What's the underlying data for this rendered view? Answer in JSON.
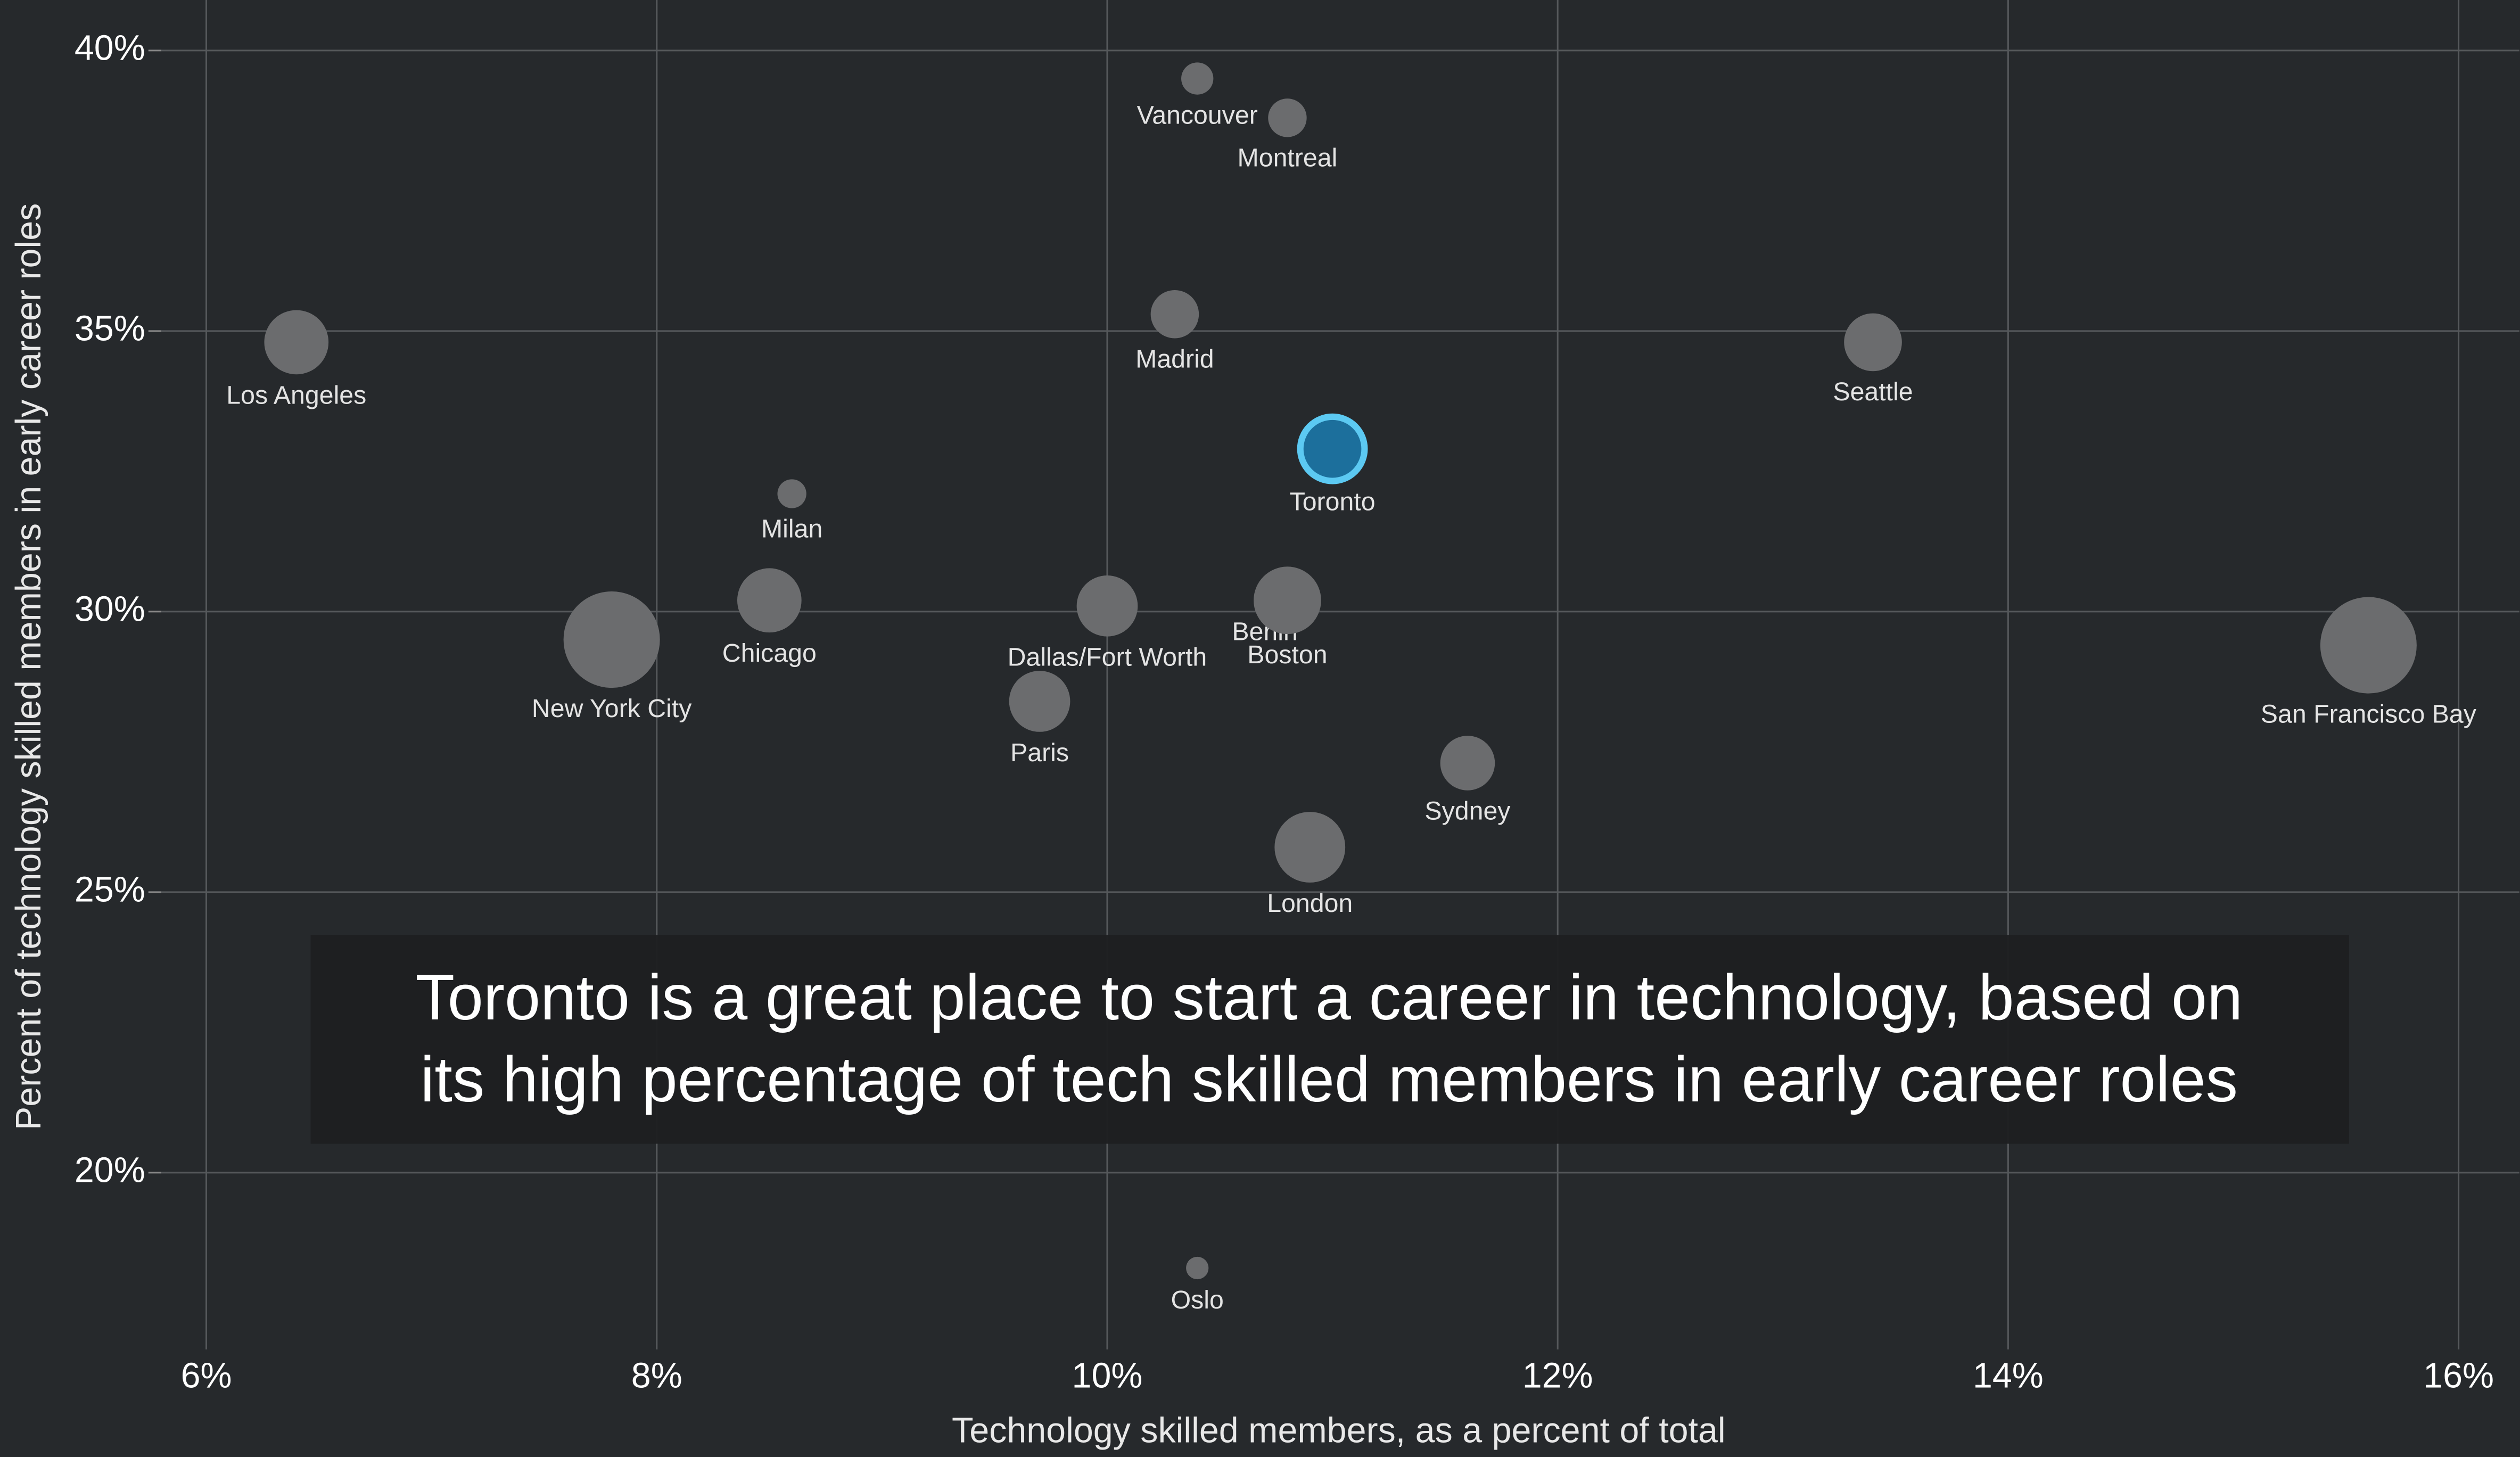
{
  "chart_data": {
    "type": "bubble",
    "x_label": "Technology skilled members, as a percent of total",
    "y_label": "Percent of technology skilled members in early career roles",
    "annotation": [
      "Toronto is a great place to start a career in technology, based on",
      "its high percentage of tech skilled members in early career roles"
    ],
    "points": [
      "Vancouver",
      "Montreal",
      "Madrid",
      "Los Angeles",
      "Seattle",
      "Toronto",
      "Milan",
      "Chicago",
      "New York City",
      "Dallas/Fort Worth",
      "Berlin",
      "Boston",
      "San Francisco Bay",
      "Paris",
      "Sydney",
      "London",
      "Oslo"
    ],
    "x": [
      10.4,
      10.8,
      10.3,
      6.4,
      13.4,
      11.0,
      8.6,
      8.5,
      7.8,
      10.0,
      10.7,
      10.8,
      15.6,
      9.7,
      11.6,
      10.9,
      10.4
    ],
    "values": [
      39.5,
      38.8,
      35.3,
      34.8,
      34.8,
      32.9,
      32.1,
      30.2,
      29.5,
      30.1,
      30.1,
      30.2,
      29.4,
      28.4,
      27.3,
      25.8,
      18.3
    ],
    "sizes": [
      10,
      12,
      15,
      20,
      18,
      20,
      9,
      20,
      30,
      19,
      3,
      21,
      30,
      19,
      17,
      22,
      7
    ],
    "colors": [
      "#6b6c6e",
      "#6b6c6e",
      "#6b6c6e",
      "#6b6c6e",
      "#6b6c6e",
      "#1c6f9c",
      "#6b6c6e",
      "#6b6c6e",
      "#6b6c6e",
      "#6b6c6e",
      "#6b6c6e",
      "#6b6c6e",
      "#6b6c6e",
      "#6b6c6e",
      "#6b6c6e",
      "#6b6c6e",
      "#6b6c6e"
    ],
    "xlim": [
      5.8,
      16.27
    ],
    "ylim": [
      16.85,
      40.9
    ],
    "xticks": [
      {
        "value": 6,
        "label": "6%"
      },
      {
        "value": 8,
        "label": "8%"
      },
      {
        "value": 10,
        "label": "10%"
      },
      {
        "value": 12,
        "label": "12%"
      },
      {
        "value": 14,
        "label": "14%"
      },
      {
        "value": 16,
        "label": "16%"
      }
    ],
    "yticks": [
      {
        "value": 20,
        "label": "20%"
      },
      {
        "value": 25,
        "label": "25%"
      },
      {
        "value": 30,
        "label": "30%"
      },
      {
        "value": 35,
        "label": "35%"
      },
      {
        "value": 40,
        "label": "40%"
      }
    ],
    "grid": true
  }
}
